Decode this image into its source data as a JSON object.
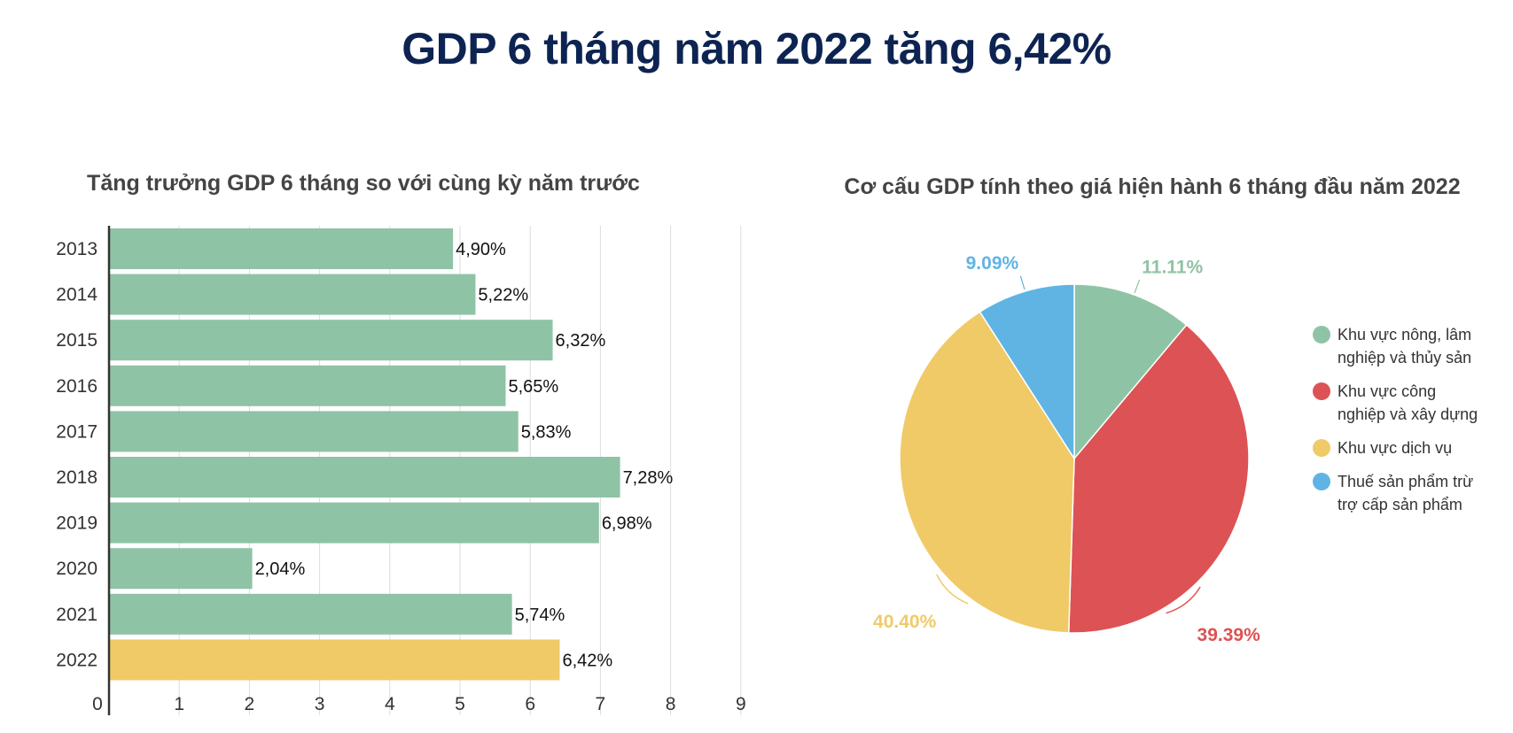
{
  "page": {
    "title": "GDP 6 tháng năm 2022 tăng 6,42%"
  },
  "chart_data": [
    {
      "type": "bar",
      "orientation": "horizontal",
      "title": "Tăng trưởng GDP 6 tháng so với cùng kỳ năm trước",
      "categories": [
        "2013",
        "2014",
        "2015",
        "2016",
        "2017",
        "2018",
        "2019",
        "2020",
        "2021",
        "2022"
      ],
      "values": [
        4.9,
        5.22,
        6.32,
        5.65,
        5.83,
        7.28,
        6.98,
        2.04,
        5.74,
        6.42
      ],
      "value_labels": [
        "4,90%",
        "5,22%",
        "6,32%",
        "5,65%",
        "5,83%",
        "7,28%",
        "6,98%",
        "2,04%",
        "5,74%",
        "6,42%"
      ],
      "xlim": [
        0,
        9
      ],
      "xticks": [
        "0",
        "1",
        "2",
        "3",
        "4",
        "5",
        "6",
        "7",
        "8",
        "9"
      ],
      "grid": true,
      "bar_color": "#8fc3a5",
      "highlight_color": "#f0ca67",
      "highlight_category": "2022"
    },
    {
      "type": "pie",
      "title": "Cơ cấu GDP tính theo giá hiện hành 6 tháng đầu năm 2022",
      "legend_position": "right",
      "slices": [
        {
          "name": "Khu vực nông, lâm nghiệp và thủy sản",
          "value": 11.11,
          "label": "11.11%",
          "color": "#8fc3a5"
        },
        {
          "name": "Khu vực công nghiệp và xây dựng",
          "value": 39.39,
          "label": "39.39%",
          "color": "#dd5254"
        },
        {
          "name": "Khu vực dịch vụ",
          "value": 40.4,
          "label": "40.40%",
          "color": "#f0ca67"
        },
        {
          "name": "Thuế sản phẩm trừ trợ cấp sản phẩm",
          "value": 9.09,
          "label": "9.09%",
          "color": "#60b4e4"
        }
      ]
    }
  ]
}
